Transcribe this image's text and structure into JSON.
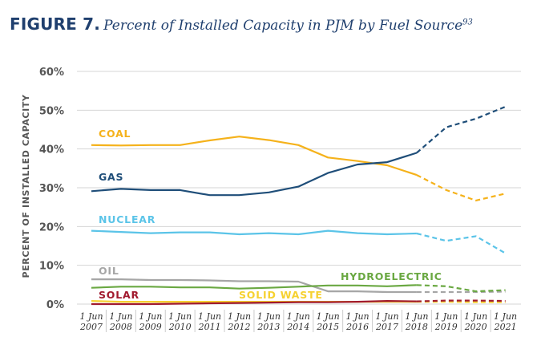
{
  "figure": {
    "number": "FIGURE 7.",
    "title": "Percent of Installed Capacity in PJM by Fuel Source",
    "footnote": "93"
  },
  "chart_data": {
    "type": "line",
    "ylabel": "PERCENT OF INSTALLED CAPACITY",
    "xlabel": "",
    "ylim": [
      0,
      60
    ],
    "yticks": [
      "0%",
      "10%",
      "20%",
      "30%",
      "40%",
      "50%",
      "60%"
    ],
    "ytick_values": [
      0,
      10,
      20,
      30,
      40,
      50,
      60
    ],
    "grid": "horizontal",
    "categories": [
      "1 Jun 2007",
      "1 Jun 2008",
      "1 Jun 2009",
      "1 Jun 2010",
      "1 Jun 2011",
      "1 Jun 2012",
      "1 Jun 2013",
      "1 Jun 2014",
      "1 Jun 2015",
      "1 Jun 2016",
      "1 Jun 2017",
      "1 Jun 2018",
      "1 Jun 2019",
      "1 Jun 2020",
      "1 Jun 2021"
    ],
    "tick_labels": [
      {
        "line1": "1 Jun",
        "line2": "2007"
      },
      {
        "line1": "1 Jun",
        "line2": "2008"
      },
      {
        "line1": "1 Jun",
        "line2": "2009"
      },
      {
        "line1": "1 Jun",
        "line2": "2010"
      },
      {
        "line1": "1 Jun",
        "line2": "2011"
      },
      {
        "line1": "1 Jun",
        "line2": "2012"
      },
      {
        "line1": "1 Jun",
        "line2": "2013"
      },
      {
        "line1": "1 Jun",
        "line2": "2014"
      },
      {
        "line1": "1 Jun",
        "line2": "2015"
      },
      {
        "line1": "1 Jun",
        "line2": "2016"
      },
      {
        "line1": "1 Jun",
        "line2": "2017"
      },
      {
        "line1": "1 Jun",
        "line2": "2018"
      },
      {
        "line1": "1 Jun",
        "line2": "2019"
      },
      {
        "line1": "1 Jun",
        "line2": "2020"
      },
      {
        "line1": "1 Jun",
        "line2": "2021"
      }
    ],
    "projection_starts_after": "1 Jun 2018",
    "series": [
      {
        "name": "COAL",
        "color": "#f5b21b",
        "values": [
          41.0,
          40.9,
          41.0,
          41.0,
          42.2,
          43.2,
          42.3,
          41.0,
          37.8,
          36.9,
          35.8,
          33.3,
          29.4,
          26.7,
          28.5
        ]
      },
      {
        "name": "GAS",
        "color": "#1f4e79",
        "values": [
          29.1,
          29.7,
          29.4,
          29.4,
          28.1,
          28.1,
          28.8,
          30.3,
          33.8,
          36.0,
          36.6,
          39.0,
          45.6,
          47.8,
          50.9
        ]
      },
      {
        "name": "NUCLEAR",
        "color": "#5bc4e8",
        "values": [
          18.9,
          18.6,
          18.3,
          18.5,
          18.5,
          18.0,
          18.3,
          18.0,
          18.9,
          18.3,
          18.0,
          18.2,
          16.3,
          17.5,
          13.1
        ]
      },
      {
        "name": "OIL",
        "color": "#a6a6a6",
        "values": [
          6.4,
          6.4,
          6.2,
          6.2,
          6.1,
          5.9,
          5.9,
          5.8,
          3.3,
          3.3,
          3.1,
          3.1,
          3.1,
          3.1,
          3.2
        ]
      },
      {
        "name": "HYDROELECTRIC",
        "color": "#6aa842",
        "values": [
          4.2,
          4.5,
          4.5,
          4.3,
          4.3,
          4.0,
          4.2,
          4.5,
          4.8,
          4.8,
          4.6,
          4.9,
          4.6,
          3.3,
          3.6
        ]
      },
      {
        "name": "SOLID WASTE",
        "color": "#f6d130",
        "values": [
          0.8,
          0.6,
          0.6,
          0.6,
          0.6,
          0.6,
          0.6,
          0.6,
          0.6,
          0.6,
          0.6,
          0.6,
          0.6,
          0.5,
          0.5
        ]
      },
      {
        "name": "SOLAR",
        "color": "#a11a2e",
        "values": [
          0.0,
          0.0,
          0.0,
          0.1,
          0.2,
          0.3,
          0.4,
          0.5,
          0.5,
          0.6,
          0.8,
          0.7,
          0.9,
          0.9,
          0.8
        ]
      }
    ]
  }
}
